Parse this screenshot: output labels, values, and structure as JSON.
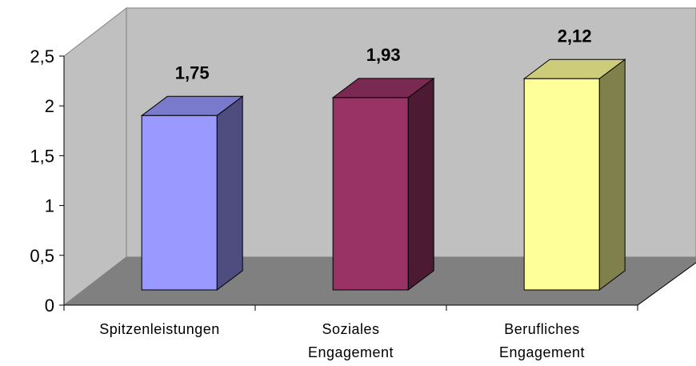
{
  "chart_data": {
    "type": "bar3d",
    "categories": [
      "Spitzenleistungen",
      "Soziales Engagement",
      "Berufliches Engagement"
    ],
    "values": [
      1.75,
      1.93,
      2.12
    ],
    "value_labels": [
      "1,75",
      "1,93",
      "2,12"
    ],
    "colors": [
      "#9999ff",
      "#993366",
      "#ffff99"
    ],
    "ylim": [
      0,
      2.5
    ],
    "yticks": [
      0,
      {
        "value": 0.5,
        "label": "0,5"
      },
      1,
      {
        "value": 1.5,
        "label": "1,5"
      },
      2,
      {
        "value": 2.5,
        "label": "2,5"
      }
    ]
  }
}
